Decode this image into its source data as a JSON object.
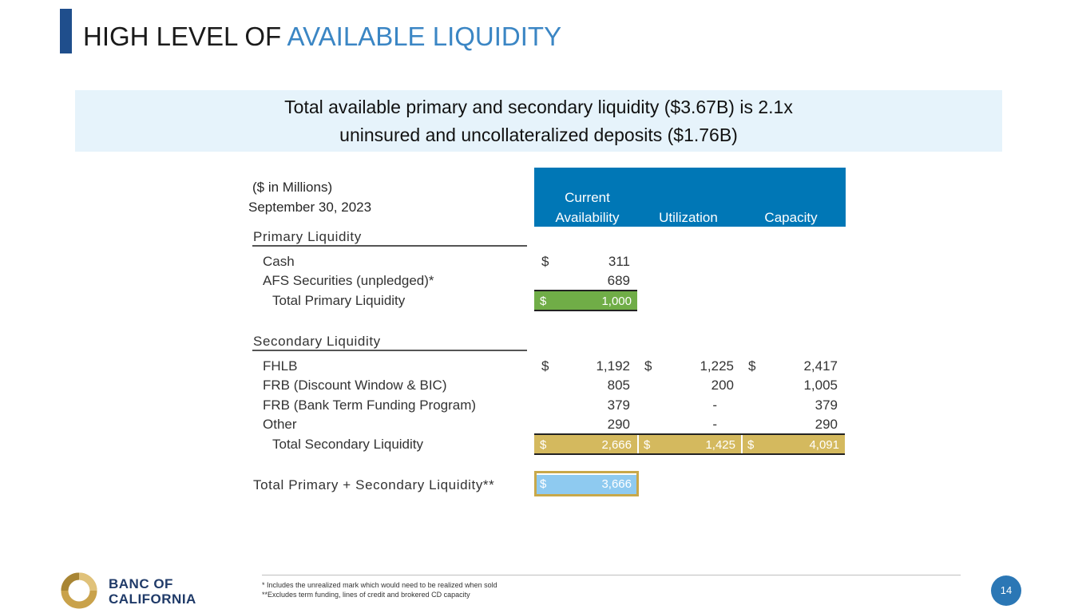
{
  "title": {
    "part1": "HIGH LEVEL OF ",
    "part2": "AVAILABLE LIQUIDITY"
  },
  "banner": {
    "line1": "Total available primary and secondary liquidity ($3.67B) is 2.1x",
    "line2": "uninsured and uncollateralized deposits ($1.76B)"
  },
  "table": {
    "units": "($ in Millions)",
    "as_of": "September 30, 2023",
    "columns": {
      "availability_line1": "Current",
      "availability_line2": "Availability",
      "utilization": "Utilization",
      "capacity": "Capacity"
    },
    "currency": "$",
    "primary": {
      "heading": "Primary Liquidity",
      "rows": [
        {
          "label": "Cash",
          "availability": "311"
        },
        {
          "label": "AFS Securities (unpledged)*",
          "availability": "689"
        }
      ],
      "total": {
        "label": "Total Primary Liquidity",
        "availability": "1,000"
      }
    },
    "secondary": {
      "heading": "Secondary Liquidity",
      "rows": [
        {
          "label": "FHLB",
          "availability": "1,192",
          "utilization": "1,225",
          "capacity": "2,417"
        },
        {
          "label": "FRB (Discount Window & BIC)",
          "availability": "805",
          "utilization": "200",
          "capacity": "1,005"
        },
        {
          "label": "FRB (Bank Term Funding Program)",
          "availability": "379",
          "utilization": "-",
          "capacity": "379"
        },
        {
          "label": "Other",
          "availability": "290",
          "utilization": "-",
          "capacity": "290"
        }
      ],
      "total": {
        "label": "Total Secondary Liquidity",
        "availability": "2,666",
        "utilization": "1,425",
        "capacity": "4,091"
      }
    },
    "grand_total": {
      "label": "Total Primary + Secondary Liquidity**",
      "availability": "3,666"
    }
  },
  "footnotes": [
    "* Includes the unrealized mark which would need to be realized when sold",
    "**Excludes term funding, lines of credit and brokered CD capacity"
  ],
  "logo": {
    "line1": "BANC OF",
    "line2": "CALIFORNIA"
  },
  "page_number": "14",
  "colors": {
    "accent": "#1f4e8c",
    "header_blue": "#0077b6",
    "green": "#70ad47",
    "gold": "#d4b95e",
    "light_blue": "#8ecaf0"
  }
}
